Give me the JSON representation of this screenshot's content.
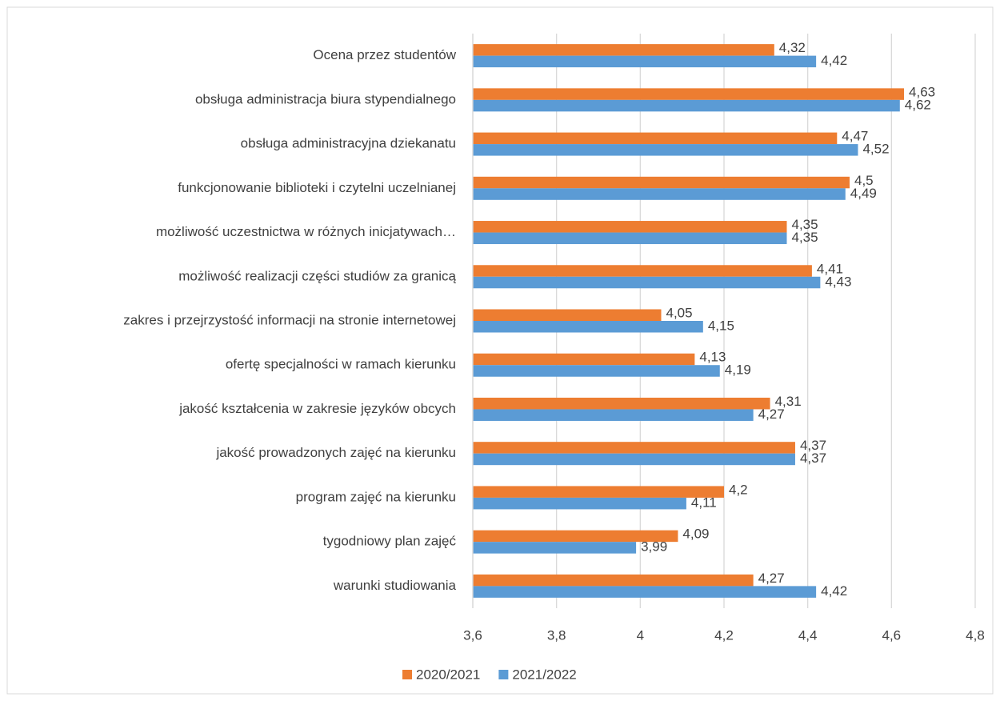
{
  "chart_data": {
    "type": "bar",
    "orientation": "horizontal",
    "categories": [
      "Ocena przez studentów",
      "obsługa administracja biura stypendialnego",
      "obsługa administracyjna dziekanatu",
      "funkcjonowanie biblioteki i czytelni uczelnianej",
      "możliwość uczestnictwa w różnych inicjatywach…",
      "możliwość realizacji części studiów za granicą",
      "zakres i przejrzystość informacji na stronie internetowej",
      "ofertę specjalności w ramach kierunku",
      "jakość kształcenia w zakresie języków obcych",
      "jakość prowadzonych zajęć na kierunku",
      "program zajęć na kierunku",
      "tygodniowy plan zajęć",
      "warunki studiowania"
    ],
    "series": [
      {
        "name": "2020/2021",
        "color": "#ed7d31",
        "values": [
          4.32,
          4.63,
          4.47,
          4.5,
          4.35,
          4.41,
          4.05,
          4.13,
          4.31,
          4.37,
          4.2,
          4.09,
          4.27
        ],
        "value_labels": [
          "4,32",
          "4,63",
          "4,47",
          "4,5",
          "4,35",
          "4,41",
          "4,05",
          "4,13",
          "4,31",
          "4,37",
          "4,2",
          "4,09",
          "4,27"
        ]
      },
      {
        "name": "2021/2022",
        "color": "#5b9bd5",
        "values": [
          4.42,
          4.62,
          4.52,
          4.49,
          4.35,
          4.43,
          4.15,
          4.19,
          4.27,
          4.37,
          4.11,
          3.99,
          4.42
        ],
        "value_labels": [
          "4,42",
          "4,62",
          "4,52",
          "4,49",
          "4,35",
          "4,43",
          "4,15",
          "4,19",
          "4,27",
          "4,37",
          "4,11",
          "3,99",
          "4,42"
        ]
      }
    ],
    "xlim": [
      3.6,
      4.8
    ],
    "xticks": [
      {
        "value": 3.6,
        "label": "3,6"
      },
      {
        "value": 3.8,
        "label": "3,8"
      },
      4,
      {
        "value": 4.2,
        "label": "4,2"
      },
      {
        "value": 4.4,
        "label": "4,4"
      },
      {
        "value": 4.6,
        "label": "4,6"
      },
      {
        "value": 4.8,
        "label": "4,8"
      }
    ],
    "grid": true,
    "legend": "bottom"
  }
}
